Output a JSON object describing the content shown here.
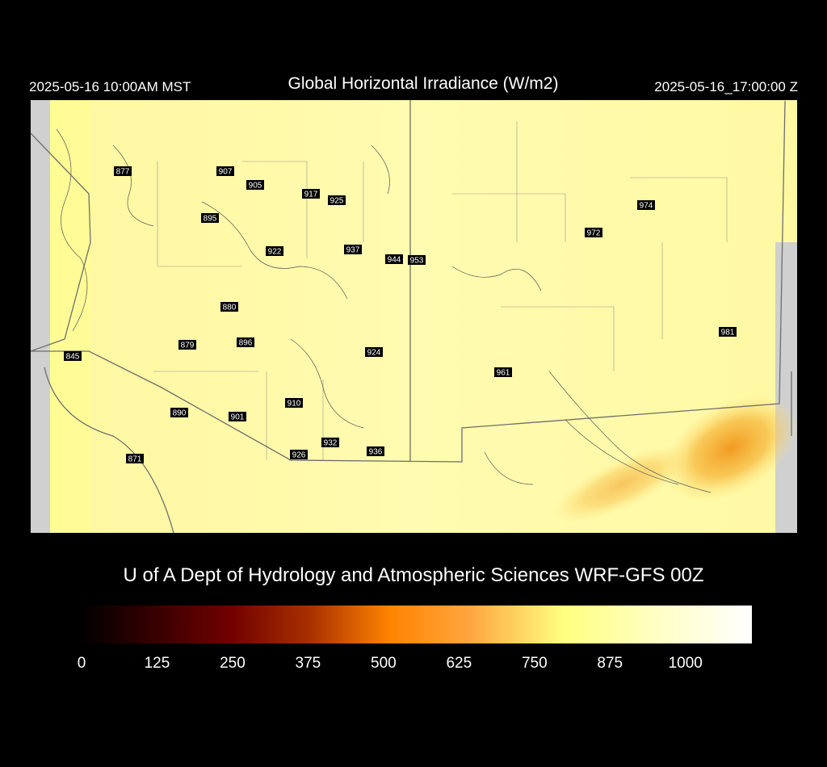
{
  "header": {
    "left": "2025-05-16 10:00AM MST",
    "title": "Global Horizontal Irradiance (W/m2)",
    "right": "2025-05-16_17:00:00 Z"
  },
  "stations": [
    877,
    907,
    905,
    917,
    925,
    895,
    922,
    937,
    944,
    953,
    974,
    972,
    880,
    879,
    896,
    924,
    981,
    961,
    845,
    910,
    890,
    901,
    932,
    926,
    936,
    871
  ],
  "credit": "U of A Dept of Hydrology and Atmospheric Sciences WRF-GFS 00Z",
  "colorbar": {
    "range": [
      0,
      1110
    ],
    "ticks": [
      0,
      125,
      250,
      375,
      500,
      625,
      750,
      875,
      1000
    ]
  }
}
